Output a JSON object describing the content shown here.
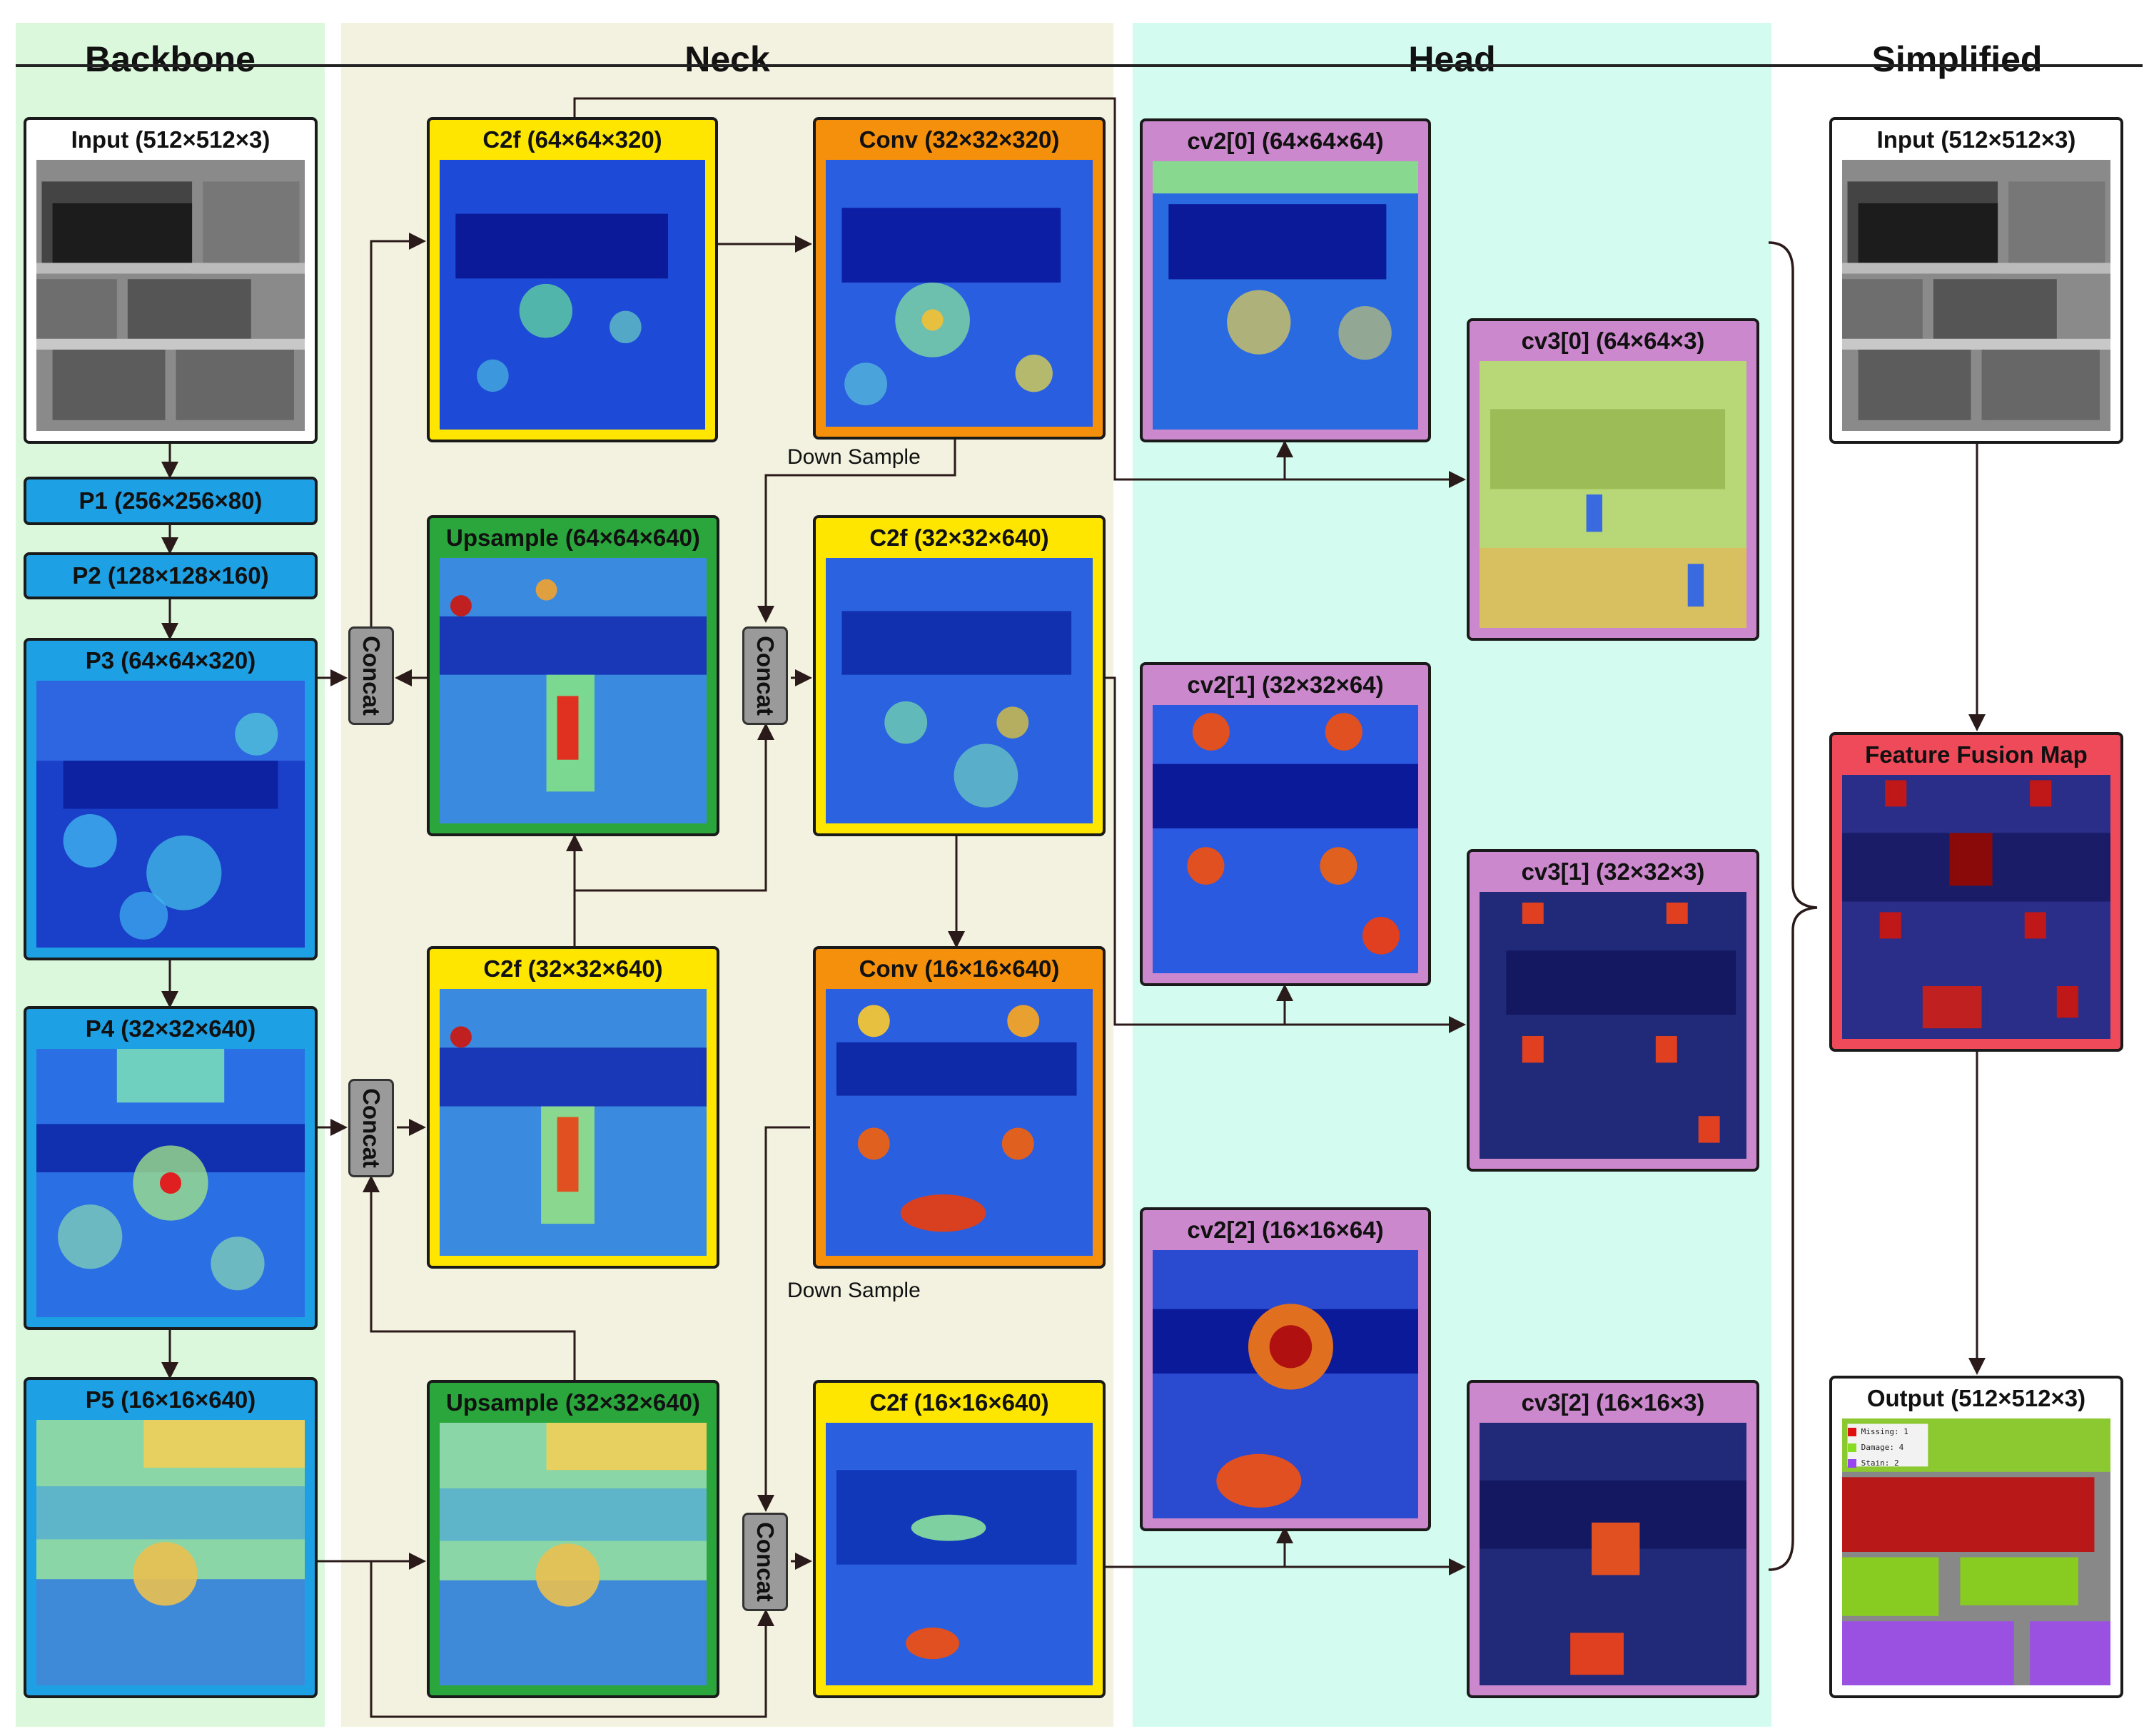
{
  "sections": {
    "backbone": "Backbone",
    "neck": "Neck",
    "head": "Head",
    "simplified": "Simplified"
  },
  "backbone": {
    "input": "Input (512×512×3)",
    "p1": "P1 (256×256×80)",
    "p2": "P2 (128×128×160)",
    "p3": "P3 (64×64×320)",
    "p4": "P4 (32×32×640)",
    "p5": "P5 (16×16×640)"
  },
  "neck": {
    "c2f_top": "C2f   (64×64×320)",
    "conv_top": "Conv (32×32×320)",
    "upsample_top": "Upsample (64×64×640)",
    "c2f_mid": "C2f (32×32×640)",
    "c2f_p4": "C2f  (32×32×640)",
    "conv_mid": "Conv (16×16×640)",
    "upsample_bottom": "Upsample (32×32×640)",
    "c2f_bottom": "C2f (16×16×640)",
    "concat": "Concat",
    "down_sample": "Down Sample"
  },
  "head": {
    "cv2_0": "cv2[0] (64×64×64)",
    "cv3_0": "cv3[0] (64×64×3)",
    "cv2_1": "cv2[1] (32×32×64)",
    "cv3_1": "cv3[1] (32×32×3)",
    "cv2_2": "cv2[2] (16×16×64)",
    "cv3_2": "cv3[2] (16×16×3)"
  },
  "simplified": {
    "input": "Input (512×512×3)",
    "fusion": "Feature Fusion Map",
    "output": "Output (512×512×3)"
  },
  "legend": {
    "missing": "Missing: 1",
    "damage": "Damage: 4",
    "stain": "Stain: 2"
  },
  "colors": {
    "backbone_bg": "#dcf8dc",
    "neck_bg": "#f3f2e0",
    "head_bg": "#d4fbef",
    "input_border": "#ffffff",
    "backbone_node": "#1ea0e4",
    "c2f": "#ffe600",
    "conv": "#f5900c",
    "upsample": "#2aa63c",
    "head_node": "#cc88cc",
    "fusion": "#ee4a5a",
    "missing": "#e01010",
    "damage": "#88dd22",
    "stain": "#9944ee"
  }
}
